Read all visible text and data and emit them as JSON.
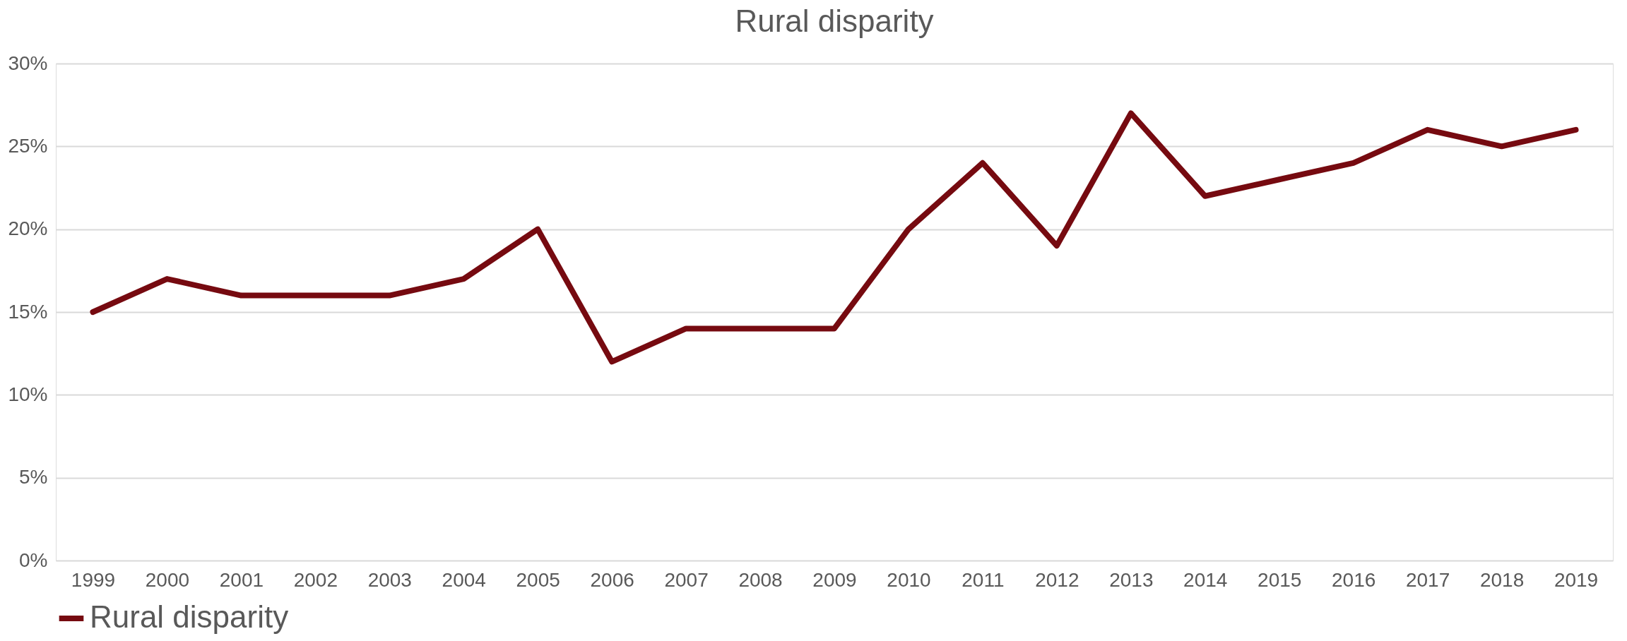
{
  "chart_data": {
    "type": "line",
    "title": "Rural disparity",
    "categories": [
      "1999",
      "2000",
      "2001",
      "2002",
      "2003",
      "2004",
      "2005",
      "2006",
      "2007",
      "2008",
      "2009",
      "2010",
      "2011",
      "2012",
      "2013",
      "2014",
      "2015",
      "2016",
      "2017",
      "2018",
      "2019"
    ],
    "series": [
      {
        "name": "Rural disparity",
        "color": "#760a10",
        "values": [
          15,
          17,
          16,
          16,
          16,
          17,
          20,
          12,
          14,
          14,
          14,
          20,
          24,
          19,
          27,
          22,
          23,
          24,
          26,
          25,
          26
        ]
      }
    ],
    "ylim": [
      0,
      30
    ],
    "yticks": [
      {
        "value": 0,
        "label": "0%"
      },
      {
        "value": 5,
        "label": "5%"
      },
      {
        "value": 10,
        "label": "10%"
      },
      {
        "value": 15,
        "label": "15%"
      },
      {
        "value": 20,
        "label": "20%"
      },
      {
        "value": 25,
        "label": "25%"
      },
      {
        "value": 30,
        "label": "30%"
      }
    ],
    "grid": "y",
    "legend": "bottom",
    "marker": "none",
    "line_style": "solid"
  }
}
